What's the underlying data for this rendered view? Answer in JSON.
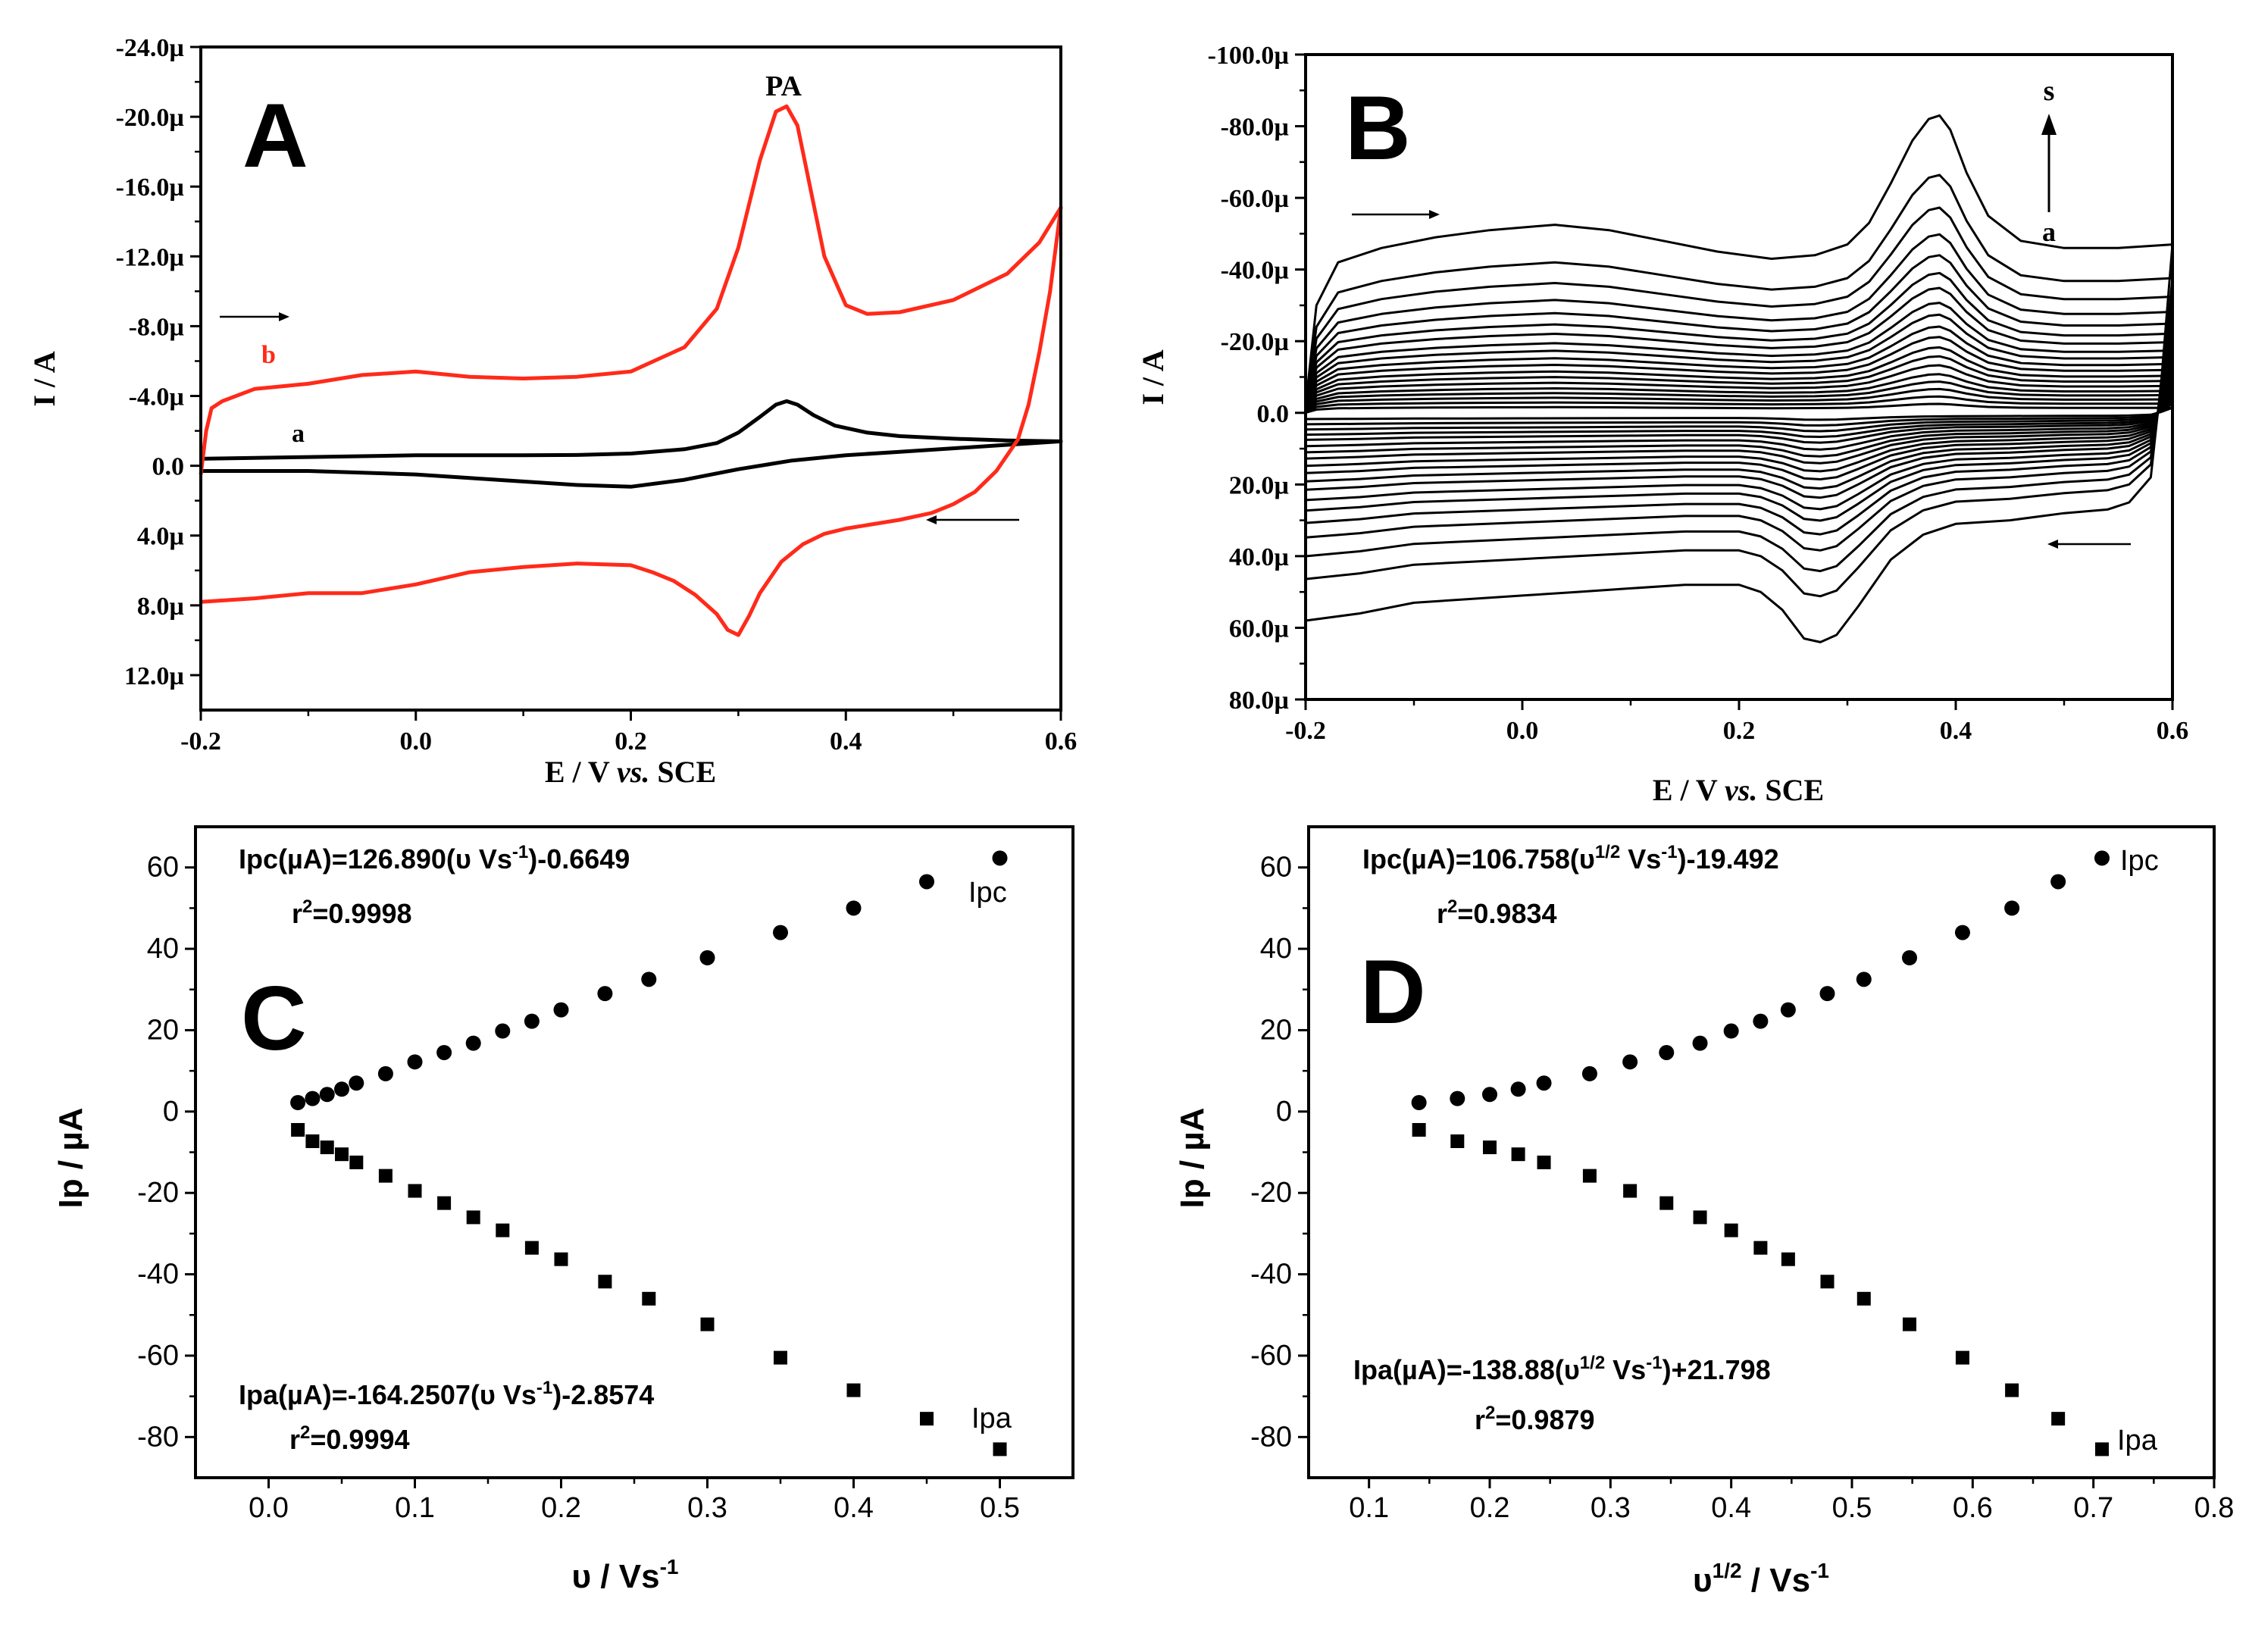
{
  "colors": {
    "ink": "#000000",
    "red": "#ff2a1a",
    "bg": "#ffffff"
  },
  "chart_data": [
    {
      "id": "A",
      "type": "line",
      "panel_label": "A",
      "title": "",
      "xlabel_parts": [
        "E / V ",
        "vs.",
        " SCE"
      ],
      "ylabel": "I / A",
      "xlim": [
        -0.2,
        0.6
      ],
      "ylim": [
        14.0,
        -24.0
      ],
      "xticks": [
        -0.2,
        0.0,
        0.2,
        0.4,
        0.6
      ],
      "xtick_labels": [
        "-0.2",
        "0.0",
        "0.2",
        "0.4",
        "0.6"
      ],
      "yticks": [
        -24,
        -20,
        -16,
        -12,
        -8,
        -4,
        0,
        4,
        8,
        12
      ],
      "ytick_labels": [
        "-24.0µ",
        "-20.0µ",
        "-16.0µ",
        "-12.0µ",
        "-8.0µ",
        "-4.0µ",
        "0.0",
        "4.0µ",
        "8.0µ",
        "12.0µ"
      ],
      "annotations": {
        "peak_label": "PA",
        "curve_a": "a",
        "curve_b": "b"
      },
      "series": [
        {
          "name": "a",
          "color": "#000000",
          "forward": {
            "x": [
              -0.2,
              -0.15,
              -0.1,
              -0.05,
              0.0,
              0.05,
              0.1,
              0.15,
              0.2,
              0.25,
              0.28,
              0.3,
              0.32,
              0.335,
              0.345,
              0.355,
              0.37,
              0.39,
              0.42,
              0.45,
              0.5,
              0.55,
              0.6
            ],
            "y": [
              -0.4,
              -0.45,
              -0.5,
              -0.55,
              -0.6,
              -0.6,
              -0.6,
              -0.62,
              -0.7,
              -0.95,
              -1.3,
              -1.9,
              -2.8,
              -3.5,
              -3.7,
              -3.5,
              -2.9,
              -2.3,
              -1.9,
              -1.7,
              -1.55,
              -1.45,
              -1.4
            ]
          },
          "reverse": {
            "x": [
              0.6,
              0.55,
              0.5,
              0.45,
              0.4,
              0.35,
              0.3,
              0.25,
              0.2,
              0.15,
              0.1,
              0.05,
              0.0,
              -0.05,
              -0.1,
              -0.15,
              -0.2
            ],
            "y": [
              -1.4,
              -1.2,
              -1.0,
              -0.8,
              -0.6,
              -0.3,
              0.2,
              0.8,
              1.2,
              1.1,
              0.9,
              0.7,
              0.5,
              0.4,
              0.3,
              0.3,
              0.3
            ]
          }
        },
        {
          "name": "b",
          "color": "#ff2a1a",
          "forward": {
            "x": [
              -0.2,
              -0.195,
              -0.19,
              -0.18,
              -0.15,
              -0.1,
              -0.05,
              0.0,
              0.05,
              0.1,
              0.15,
              0.2,
              0.25,
              0.28,
              0.3,
              0.32,
              0.335,
              0.345,
              0.355,
              0.37,
              0.38,
              0.4,
              0.42,
              0.45,
              0.5,
              0.55,
              0.58,
              0.6
            ],
            "y": [
              0.5,
              -2.0,
              -3.3,
              -3.7,
              -4.4,
              -4.7,
              -5.2,
              -5.4,
              -5.1,
              -5.0,
              -5.1,
              -5.4,
              -6.8,
              -9.0,
              -12.5,
              -17.5,
              -20.3,
              -20.6,
              -19.5,
              -15.0,
              -12.0,
              -9.2,
              -8.7,
              -8.8,
              -9.5,
              -11.0,
              -12.8,
              -14.8
            ]
          },
          "reverse": {
            "x": [
              0.6,
              0.59,
              0.58,
              0.57,
              0.56,
              0.54,
              0.52,
              0.5,
              0.48,
              0.45,
              0.42,
              0.4,
              0.38,
              0.36,
              0.34,
              0.32,
              0.31,
              0.3,
              0.29,
              0.28,
              0.26,
              0.24,
              0.22,
              0.2,
              0.15,
              0.1,
              0.05,
              0.0,
              -0.05,
              -0.1,
              -0.15,
              -0.2
            ],
            "y": [
              -14.8,
              -10.0,
              -6.5,
              -3.5,
              -1.5,
              0.3,
              1.5,
              2.2,
              2.7,
              3.1,
              3.4,
              3.6,
              3.9,
              4.5,
              5.5,
              7.3,
              8.6,
              9.7,
              9.4,
              8.5,
              7.4,
              6.6,
              6.1,
              5.7,
              5.6,
              5.8,
              6.1,
              6.8,
              7.3,
              7.3,
              7.6,
              7.8
            ]
          }
        }
      ]
    },
    {
      "id": "B",
      "type": "line",
      "panel_label": "B",
      "title": "",
      "xlabel_parts": [
        "E / V ",
        "vs.",
        " SCE"
      ],
      "ylabel": "I / A",
      "xlim": [
        -0.2,
        0.6
      ],
      "ylim": [
        80.0,
        -100.0
      ],
      "xticks": [
        -0.2,
        0.0,
        0.2,
        0.4,
        0.6
      ],
      "xtick_labels": [
        "-0.2",
        "0.0",
        "0.2",
        "0.4",
        "0.6"
      ],
      "yticks": [
        -100,
        -80,
        -60,
        -40,
        -20,
        0,
        20,
        40,
        60,
        80
      ],
      "ytick_labels": [
        "-100.0µ",
        "-80.0µ",
        "-60.0µ",
        "-40.0µ",
        "-20.0µ",
        "0.0",
        "20.0µ",
        "40.0µ",
        "60.0µ",
        "80.0µ"
      ],
      "annotations": {
        "start_label": "a",
        "end_label": "s"
      },
      "curve_count": 19,
      "scale_factors": [
        0.03,
        0.055,
        0.08,
        0.105,
        0.13,
        0.16,
        0.19,
        0.22,
        0.255,
        0.29,
        0.33,
        0.37,
        0.42,
        0.47,
        0.53,
        0.6,
        0.69,
        0.8,
        1.0
      ],
      "template": {
        "forward": {
          "x": [
            -0.2,
            -0.19,
            -0.17,
            -0.13,
            -0.08,
            -0.03,
            0.03,
            0.08,
            0.13,
            0.18,
            0.23,
            0.27,
            0.3,
            0.32,
            0.34,
            0.36,
            0.375,
            0.385,
            0.395,
            0.41,
            0.43,
            0.46,
            0.5,
            0.55,
            0.6
          ],
          "y": [
            -2,
            -30,
            -42,
            -46,
            -49,
            -51,
            -52.5,
            -51,
            -48,
            -45,
            -43,
            -44,
            -47,
            -53,
            -64,
            -76,
            -82,
            -83,
            -79,
            -67,
            -55,
            -48,
            -46,
            -46,
            -47
          ]
        },
        "reverse": {
          "x": [
            0.6,
            0.59,
            0.58,
            0.56,
            0.54,
            0.5,
            0.45,
            0.4,
            0.37,
            0.34,
            0.31,
            0.29,
            0.275,
            0.26,
            0.24,
            0.22,
            0.2,
            0.15,
            0.1,
            0.05,
            0.0,
            -0.05,
            -0.1,
            -0.15,
            -0.2
          ],
          "y": [
            -47,
            -10,
            18,
            25,
            27,
            28,
            30,
            31,
            34,
            41,
            54,
            62,
            64,
            63,
            55,
            50,
            48,
            48,
            49,
            50,
            51,
            52,
            53,
            56,
            58
          ]
        }
      }
    },
    {
      "id": "C",
      "type": "scatter",
      "panel_label": "C",
      "title": "",
      "xlabel_parts": [
        "υ / Vs",
        "-1"
      ],
      "ylabel": "Ip / µA",
      "xlim": [
        -0.05,
        0.55
      ],
      "ylim": [
        -90,
        70
      ],
      "xticks": [
        0.0,
        0.1,
        0.2,
        0.3,
        0.4,
        0.5
      ],
      "xtick_labels": [
        "0.0",
        "0.1",
        "0.2",
        "0.3",
        "0.4",
        "0.5"
      ],
      "yticks": [
        60,
        40,
        20,
        0,
        -20,
        -40,
        -60,
        -80
      ],
      "ytick_labels": [
        "60",
        "40",
        "20",
        "0",
        "-20",
        "-40",
        "-60",
        "-80"
      ],
      "series": [
        {
          "name": "Ipc",
          "marker": "circle",
          "x": [
            0.02,
            0.03,
            0.04,
            0.05,
            0.06,
            0.08,
            0.1,
            0.12,
            0.14,
            0.16,
            0.18,
            0.2,
            0.23,
            0.26,
            0.3,
            0.35,
            0.4,
            0.45,
            0.5
          ],
          "y": [
            2.2,
            3.2,
            4.2,
            5.5,
            7.0,
            9.3,
            12.2,
            14.5,
            16.8,
            19.8,
            22.2,
            25.0,
            29.0,
            32.5,
            37.8,
            44.0,
            50.0,
            56.5,
            62.3
          ]
        },
        {
          "name": "Ipa",
          "marker": "square",
          "x": [
            0.02,
            0.03,
            0.04,
            0.05,
            0.06,
            0.08,
            0.1,
            0.12,
            0.14,
            0.16,
            0.18,
            0.2,
            0.23,
            0.26,
            0.3,
            0.35,
            0.4,
            0.45,
            0.5
          ],
          "y": [
            -4.5,
            -7.3,
            -8.8,
            -10.5,
            -12.5,
            -15.8,
            -19.5,
            -22.5,
            -26.0,
            -29.2,
            -33.5,
            -36.3,
            -41.8,
            -46.0,
            -52.3,
            -60.5,
            -68.5,
            -75.5,
            -83.0
          ]
        }
      ],
      "equations": [
        {
          "series": "Ipc",
          "main": "Ipc(µA)=126.890(υ Vs",
          "sup": "-1",
          "tail": ")-0.6649",
          "r_text": "r",
          "r_sup": "2",
          "r_value": "=0.9998"
        },
        {
          "series": "Ipa",
          "main": "Ipa(µA)=-164.2507(υ Vs",
          "sup": "-1",
          "tail": ")-2.8574",
          "r_text": "r",
          "r_sup": "2",
          "r_value": "=0.9994"
        }
      ]
    },
    {
      "id": "D",
      "type": "scatter",
      "panel_label": "D",
      "title": "",
      "xlabel_parts": [
        "υ",
        "1/2",
        " / Vs",
        "-1"
      ],
      "ylabel": "Ip / µA",
      "xlim": [
        0.05,
        0.8
      ],
      "ylim": [
        -90,
        70
      ],
      "xticks": [
        0.1,
        0.2,
        0.3,
        0.4,
        0.5,
        0.6,
        0.7,
        0.8
      ],
      "xtick_labels": [
        "0.1",
        "0.2",
        "0.3",
        "0.4",
        "0.5",
        "0.6",
        "0.7",
        "0.8"
      ],
      "yticks": [
        60,
        40,
        20,
        0,
        -20,
        -40,
        -60,
        -80
      ],
      "ytick_labels": [
        "60",
        "40",
        "20",
        "0",
        "-20",
        "-40",
        "-60",
        "-80"
      ],
      "series": [
        {
          "name": "Ipc",
          "marker": "circle",
          "x": [
            0.1414,
            0.1732,
            0.2,
            0.2236,
            0.2449,
            0.2828,
            0.3162,
            0.3464,
            0.3742,
            0.4,
            0.4243,
            0.4472,
            0.4796,
            0.5099,
            0.5477,
            0.5916,
            0.6325,
            0.6708,
            0.7071
          ],
          "y": [
            2.2,
            3.2,
            4.2,
            5.5,
            7.0,
            9.3,
            12.2,
            14.5,
            16.8,
            19.8,
            22.2,
            25.0,
            29.0,
            32.5,
            37.8,
            44.0,
            50.0,
            56.5,
            62.3
          ]
        },
        {
          "name": "Ipa",
          "marker": "square",
          "x": [
            0.1414,
            0.1732,
            0.2,
            0.2236,
            0.2449,
            0.2828,
            0.3162,
            0.3464,
            0.3742,
            0.4,
            0.4243,
            0.4472,
            0.4796,
            0.5099,
            0.5477,
            0.5916,
            0.6325,
            0.6708,
            0.7071
          ],
          "y": [
            -4.5,
            -7.3,
            -8.8,
            -10.5,
            -12.5,
            -15.8,
            -19.5,
            -22.5,
            -26.0,
            -29.2,
            -33.5,
            -36.3,
            -41.8,
            -46.0,
            -52.3,
            -60.5,
            -68.5,
            -75.5,
            -83.0
          ]
        }
      ],
      "equations": [
        {
          "series": "Ipc",
          "main": "Ipc(µA)=106.758(υ",
          "sup": "1/2",
          "main2": " Vs",
          "sup2": "-1",
          "tail": ")-19.492",
          "r_text": "r",
          "r_sup": "2",
          "r_value": "=0.9834"
        },
        {
          "series": "Ipa",
          "main": "Ipa(µA)=-138.88(υ",
          "sup": "1/2",
          "main2": " Vs",
          "sup2": "-1",
          "tail": ")+21.798",
          "r_text": "r",
          "r_sup": "2",
          "r_value": "=0.9879"
        }
      ]
    }
  ]
}
